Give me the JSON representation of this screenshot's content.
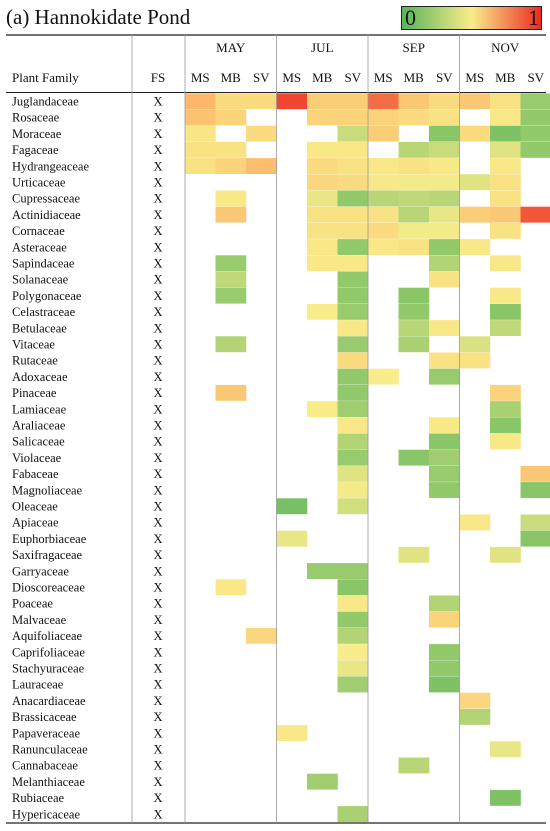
{
  "title": "(a) Hannokidate Pond",
  "legend": {
    "min_label": "0",
    "max_label": "1",
    "colors": [
      "#58b55a",
      "#f9ec8a",
      "#ee2a22"
    ]
  },
  "chart_data": {
    "type": "heatmap",
    "row_header": "Plant Family",
    "fs_header": "FS",
    "months": [
      "MAY",
      "JUL",
      "SEP",
      "NOV"
    ],
    "columns": [
      "MS",
      "MB",
      "SV",
      "MS",
      "MB",
      "SV",
      "MS",
      "MB",
      "SV",
      "MS",
      "MB",
      "SV"
    ],
    "column_month": [
      "MAY",
      "MAY",
      "MAY",
      "JUL",
      "JUL",
      "JUL",
      "SEP",
      "SEP",
      "SEP",
      "NOV",
      "NOV",
      "NOV"
    ],
    "value_range": [
      0,
      1
    ],
    "rows": [
      "Juglandaceae",
      "Rosaceae",
      "Moraceae",
      "Fagaceae",
      "Hydrangeaceae",
      "Urticaceae",
      "Cupressaceae",
      "Actinidiaceae",
      "Cornaceae",
      "Asteraceae",
      "Sapindaceae",
      "Solanaceae",
      "Polygonaceae",
      "Celastraceae",
      "Betulaceae",
      "Vitaceae",
      "Rutaceae",
      "Adoxaceae",
      "Pinaceae",
      "Lamiaceae",
      "Araliaceae",
      "Salicaceae",
      "Violaceae",
      "Fabaceae",
      "Magnoliaceae",
      "Oleaceae",
      "Apiaceae",
      "Euphorbiaceae",
      "Saxifragaceae",
      "Garryaceae",
      "Dioscoreaceae",
      "Poaceae",
      "Malvaceae",
      "Aquifoliaceae",
      "Caprifoliaceae",
      "Stachyuraceae",
      "Lauraceae",
      "Anacardiaceae",
      "Brassicaceae",
      "Papaveraceae",
      "Ranunculaceae",
      "Cannabaceae",
      "Melanthiaceae",
      "Rubiaceae",
      "Hypericaceae"
    ],
    "fs_marks": [
      "X",
      "X",
      "X",
      "X",
      "X",
      "X",
      "X",
      "X",
      "X",
      "X",
      "X",
      "X",
      "X",
      "X",
      "X",
      "X",
      "X",
      "X",
      "X",
      "X",
      "X",
      "X",
      "X",
      "X",
      "X",
      "X",
      "X",
      "X",
      "X",
      "X",
      "X",
      "X",
      "X",
      "X",
      "X",
      "X",
      "X",
      "X",
      "X",
      "X",
      "X",
      "X",
      "X",
      "X",
      "X"
    ],
    "values": [
      [
        0.75,
        0.58,
        0.58,
        0.95,
        0.65,
        0.65,
        0.88,
        0.68,
        0.58,
        0.68,
        0.55,
        0.2
      ],
      [
        0.7,
        0.62,
        null,
        null,
        0.62,
        0.62,
        0.62,
        0.58,
        0.55,
        null,
        0.52,
        0.18
      ],
      [
        0.53,
        null,
        0.58,
        null,
        null,
        0.35,
        0.65,
        null,
        0.15,
        0.58,
        0.12,
        0.18
      ],
      [
        0.55,
        0.55,
        null,
        null,
        0.52,
        0.52,
        null,
        0.3,
        0.35,
        null,
        0.42,
        0.18
      ],
      [
        0.55,
        0.62,
        0.72,
        null,
        0.58,
        0.55,
        0.52,
        0.55,
        0.52,
        null,
        0.52,
        null
      ],
      [
        null,
        null,
        null,
        null,
        0.6,
        0.58,
        0.52,
        0.48,
        0.48,
        0.42,
        0.55,
        null
      ],
      [
        null,
        0.52,
        null,
        null,
        0.45,
        0.18,
        0.3,
        0.32,
        0.3,
        null,
        0.55,
        null
      ],
      [
        null,
        0.68,
        null,
        null,
        0.55,
        0.55,
        0.55,
        0.3,
        0.45,
        0.65,
        0.68,
        0.92
      ],
      [
        null,
        null,
        null,
        null,
        0.55,
        0.55,
        0.58,
        0.48,
        0.48,
        null,
        0.55,
        null
      ],
      [
        null,
        null,
        null,
        null,
        0.52,
        0.18,
        0.52,
        0.55,
        0.18,
        0.52,
        null,
        null
      ],
      [
        null,
        0.2,
        null,
        null,
        0.52,
        0.52,
        null,
        null,
        0.28,
        null,
        0.52,
        null
      ],
      [
        null,
        0.32,
        null,
        null,
        null,
        0.18,
        null,
        null,
        0.55,
        null,
        null,
        null
      ],
      [
        null,
        0.2,
        null,
        null,
        null,
        0.18,
        null,
        0.15,
        null,
        null,
        0.52,
        null
      ],
      [
        null,
        null,
        null,
        null,
        0.5,
        0.2,
        null,
        0.18,
        null,
        null,
        0.15,
        null
      ],
      [
        null,
        null,
        null,
        null,
        null,
        0.52,
        null,
        0.3,
        0.52,
        null,
        0.32,
        null
      ],
      [
        null,
        0.28,
        null,
        null,
        null,
        0.2,
        null,
        0.25,
        null,
        0.4,
        null,
        null
      ],
      [
        null,
        null,
        null,
        null,
        null,
        0.58,
        null,
        null,
        0.55,
        0.55,
        null,
        null
      ],
      [
        null,
        null,
        null,
        null,
        null,
        0.18,
        0.5,
        null,
        0.2,
        null,
        null,
        null
      ],
      [
        null,
        0.68,
        null,
        null,
        null,
        0.18,
        null,
        null,
        null,
        null,
        0.62,
        null
      ],
      [
        null,
        null,
        null,
        null,
        0.5,
        0.22,
        null,
        null,
        null,
        null,
        0.25,
        null
      ],
      [
        null,
        null,
        null,
        null,
        null,
        0.52,
        null,
        null,
        0.52,
        null,
        0.15,
        null
      ],
      [
        null,
        null,
        null,
        null,
        null,
        0.28,
        null,
        null,
        0.15,
        null,
        0.52,
        null
      ],
      [
        null,
        null,
        null,
        null,
        null,
        0.2,
        null,
        0.15,
        0.22,
        null,
        null,
        null
      ],
      [
        null,
        null,
        null,
        null,
        null,
        0.42,
        null,
        null,
        0.2,
        null,
        null,
        0.68
      ],
      [
        null,
        null,
        null,
        null,
        null,
        0.48,
        null,
        null,
        0.18,
        null,
        null,
        0.15
      ],
      [
        null,
        null,
        null,
        0.1,
        null,
        0.38,
        null,
        null,
        null,
        null,
        null,
        null
      ],
      [
        null,
        null,
        null,
        null,
        null,
        null,
        null,
        null,
        null,
        0.52,
        null,
        0.35
      ],
      [
        null,
        null,
        null,
        0.45,
        null,
        null,
        null,
        null,
        null,
        null,
        null,
        0.15
      ],
      [
        null,
        null,
        null,
        null,
        null,
        null,
        null,
        0.42,
        null,
        null,
        0.42,
        null
      ],
      [
        null,
        null,
        null,
        null,
        0.2,
        0.2,
        null,
        null,
        null,
        null,
        null,
        null
      ],
      [
        null,
        0.52,
        null,
        null,
        null,
        0.15,
        null,
        null,
        null,
        null,
        null,
        null
      ],
      [
        null,
        null,
        null,
        null,
        null,
        0.52,
        null,
        null,
        0.28,
        null,
        null,
        null
      ],
      [
        null,
        null,
        null,
        null,
        null,
        0.18,
        null,
        null,
        0.62,
        null,
        null,
        null
      ],
      [
        null,
        null,
        0.6,
        null,
        null,
        0.28,
        null,
        null,
        null,
        null,
        null,
        null
      ],
      [
        null,
        null,
        null,
        null,
        null,
        0.5,
        null,
        null,
        0.18,
        null,
        null,
        null
      ],
      [
        null,
        null,
        null,
        null,
        null,
        0.45,
        null,
        null,
        0.18,
        null,
        null,
        null
      ],
      [
        null,
        null,
        null,
        null,
        null,
        0.22,
        null,
        null,
        0.12,
        null,
        null,
        null
      ],
      [
        null,
        null,
        null,
        null,
        null,
        null,
        null,
        null,
        null,
        0.6,
        null,
        null
      ],
      [
        null,
        null,
        null,
        null,
        null,
        null,
        null,
        null,
        null,
        0.28,
        null,
        null
      ],
      [
        null,
        null,
        null,
        0.52,
        null,
        null,
        null,
        null,
        null,
        null,
        null,
        null
      ],
      [
        null,
        null,
        null,
        null,
        null,
        null,
        null,
        null,
        null,
        null,
        0.45,
        null
      ],
      [
        null,
        null,
        null,
        null,
        null,
        null,
        null,
        0.3,
        null,
        null,
        null,
        null
      ],
      [
        null,
        null,
        null,
        null,
        0.22,
        null,
        null,
        null,
        null,
        null,
        null,
        null
      ],
      [
        null,
        null,
        null,
        null,
        null,
        null,
        null,
        null,
        null,
        null,
        0.12,
        null
      ],
      [
        null,
        null,
        null,
        null,
        null,
        0.25,
        null,
        null,
        null,
        null,
        null,
        null
      ]
    ]
  }
}
